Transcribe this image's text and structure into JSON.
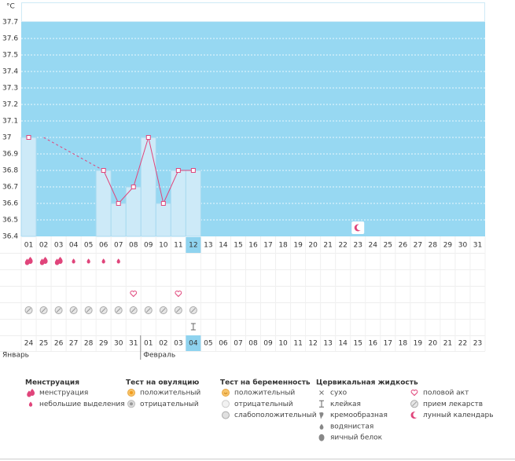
{
  "chart_data": {
    "type": "line",
    "unit": "°C",
    "categories": [
      "01",
      "02",
      "03",
      "04",
      "05",
      "06",
      "07",
      "08",
      "09",
      "10",
      "11",
      "12",
      "13",
      "14",
      "15",
      "16",
      "17",
      "18",
      "19",
      "20",
      "21",
      "22",
      "23",
      "24",
      "25",
      "26",
      "27",
      "28",
      "29",
      "30",
      "31"
    ],
    "values": [
      37.0,
      null,
      null,
      null,
      null,
      36.8,
      36.6,
      36.7,
      37.0,
      36.6,
      36.8,
      36.8,
      null,
      null,
      null,
      null,
      null,
      null,
      null,
      null,
      null,
      null,
      null,
      null,
      null,
      null,
      null,
      null,
      null,
      null,
      null
    ],
    "line_color": "#e0457b",
    "bar_color": "#cdeaf8",
    "area_color": "#97d8f2",
    "ylim": [
      36.4,
      37.7
    ],
    "yticks": [
      36.4,
      36.5,
      36.6,
      36.7,
      36.8,
      36.9,
      37,
      37.1,
      37.2,
      37.3,
      37.4,
      37.5,
      37.6,
      37.7
    ],
    "grid": true,
    "highlight_day": 12,
    "months": [
      {
        "label": "Январь",
        "first_day": 1
      },
      {
        "label": "Февраль",
        "first_day": 9
      }
    ],
    "dates": [
      {
        "label": "24",
        "holiday": false
      },
      {
        "label": "25",
        "holiday": true
      },
      {
        "label": "26",
        "holiday": true
      },
      {
        "label": "27",
        "holiday": false
      },
      {
        "label": "28",
        "holiday": false
      },
      {
        "label": "29",
        "holiday": false
      },
      {
        "label": "30",
        "holiday": false
      },
      {
        "label": "31",
        "holiday": false
      },
      {
        "label": "01",
        "holiday": true
      },
      {
        "label": "02",
        "holiday": true
      },
      {
        "label": "03",
        "holiday": true
      },
      {
        "label": "04",
        "holiday": false
      },
      {
        "label": "05",
        "holiday": false
      },
      {
        "label": "06",
        "holiday": false
      },
      {
        "label": "07",
        "holiday": false
      },
      {
        "label": "08",
        "holiday": true
      },
      {
        "label": "09",
        "holiday": true
      },
      {
        "label": "10",
        "holiday": false
      },
      {
        "label": "11",
        "holiday": false
      },
      {
        "label": "12",
        "holiday": false
      },
      {
        "label": "13",
        "holiday": false
      },
      {
        "label": "14",
        "holiday": false
      },
      {
        "label": "15",
        "holiday": true
      },
      {
        "label": "16",
        "holiday": true
      },
      {
        "label": "17",
        "holiday": false
      },
      {
        "label": "18",
        "holiday": false
      },
      {
        "label": "19",
        "holiday": false
      },
      {
        "label": "20",
        "holiday": false
      },
      {
        "label": "21",
        "holiday": false
      },
      {
        "label": "22",
        "holiday": true
      },
      {
        "label": "23",
        "holiday": true
      }
    ]
  },
  "legend": {
    "groups": [
      {
        "title": "Менструация",
        "items": [
          {
            "label": "менструация",
            "days": [
              1,
              2,
              3
            ]
          },
          {
            "label": "небольшие выделения",
            "days": [
              4,
              5,
              6,
              7
            ]
          }
        ]
      },
      {
        "title": "Тест на овуляцию",
        "items": [
          {
            "label": "положительный"
          },
          {
            "label": "отрицательный"
          }
        ]
      },
      {
        "title": "Тест на беременность",
        "items": [
          {
            "label": "положительный"
          },
          {
            "label": "отрицательный"
          },
          {
            "label": "слабоположительный"
          }
        ]
      },
      {
        "title": "Цервикальная жидкость",
        "items": [
          {
            "label": "сухо"
          },
          {
            "label": "клейкая",
            "days": [
              12
            ]
          },
          {
            "label": "кремообразная"
          },
          {
            "label": "водянистая"
          },
          {
            "label": "яичный белок"
          }
        ]
      },
      {
        "items": [
          {
            "label": "половой акт",
            "days": [
              8,
              11
            ]
          },
          {
            "label": "прием лекарств",
            "days": [
              1,
              2,
              3,
              4,
              5,
              6,
              7,
              8,
              9,
              10,
              11,
              12
            ]
          },
          {
            "label": "лунный календарь",
            "days": [
              23
            ]
          }
        ]
      }
    ]
  }
}
